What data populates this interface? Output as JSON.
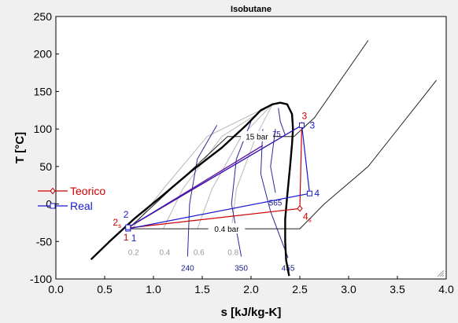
{
  "chart_data": {
    "type": "line",
    "title": "Isobutane",
    "xlabel": "s [kJ/kg-K]",
    "ylabel": "T [°C]",
    "xlim": [
      0.0,
      4.0
    ],
    "ylim": [
      -100,
      250
    ],
    "xticks": [
      "0.0",
      "0.5",
      "1.0",
      "1.5",
      "2.0",
      "2.5",
      "3.0",
      "3.5",
      "4.0"
    ],
    "yticks": [
      "-100",
      "-50",
      "0",
      "50",
      "100",
      "150",
      "200",
      "250"
    ],
    "grid": false,
    "legend_position": "left",
    "saturation_dome": [
      [
        0.36,
        -74
      ],
      [
        0.55,
        -50
      ],
      [
        0.8,
        -20
      ],
      [
        1.1,
        12
      ],
      [
        1.4,
        45
      ],
      [
        1.7,
        75
      ],
      [
        1.95,
        105
      ],
      [
        2.1,
        125
      ],
      [
        2.22,
        133
      ],
      [
        2.3,
        135
      ],
      [
        2.37,
        133
      ],
      [
        2.42,
        120
      ],
      [
        2.43,
        100
      ],
      [
        2.42,
        80
      ],
      [
        2.4,
        50
      ],
      [
        2.37,
        10
      ],
      [
        2.35,
        -20
      ],
      [
        2.35,
        -50
      ],
      [
        2.36,
        -75
      ],
      [
        2.39,
        -96
      ]
    ],
    "isobars": [
      {
        "label": "15 bar",
        "points": [
          [
            0.75,
            -32
          ],
          [
            1.76,
            90
          ],
          [
            2.44,
            90
          ],
          [
            2.65,
            115
          ],
          [
            3.2,
            218
          ]
        ]
      },
      {
        "label": "0.4 bar",
        "points": [
          [
            0.75,
            -33
          ],
          [
            2.5,
            -33
          ],
          [
            2.75,
            0
          ],
          [
            3.2,
            50
          ],
          [
            3.7,
            132
          ],
          [
            3.9,
            165
          ]
        ]
      }
    ],
    "quality_lines": [
      {
        "label": "0.2",
        "points": [
          [
            0.78,
            -33
          ],
          [
            1.1,
            20
          ],
          [
            1.55,
            90
          ],
          [
            2.22,
            133
          ]
        ]
      },
      {
        "label": "0.4",
        "points": [
          [
            1.1,
            -33
          ],
          [
            1.3,
            20
          ],
          [
            1.7,
            90
          ],
          [
            2.22,
            133
          ]
        ]
      },
      {
        "label": "0.6",
        "points": [
          [
            1.45,
            -33
          ],
          [
            1.6,
            20
          ],
          [
            1.9,
            90
          ],
          [
            2.22,
            133
          ]
        ]
      },
      {
        "label": "0.8",
        "points": [
          [
            1.8,
            -33
          ],
          [
            1.85,
            20
          ],
          [
            2.05,
            90
          ],
          [
            2.22,
            133
          ]
        ]
      }
    ],
    "isochores": [
      {
        "label": "240",
        "points": [
          [
            1.35,
            -70
          ],
          [
            1.37,
            0
          ],
          [
            1.45,
            60
          ],
          [
            1.65,
            105
          ]
        ]
      },
      {
        "label": "350",
        "points": [
          [
            1.9,
            -70
          ],
          [
            1.8,
            0
          ],
          [
            1.85,
            60
          ],
          [
            2.0,
            110
          ]
        ]
      },
      {
        "label": "455",
        "points": [
          [
            2.38,
            -72
          ],
          [
            2.2,
            -10
          ],
          [
            2.1,
            40
          ],
          [
            2.12,
            100
          ]
        ]
      },
      {
        "label": "565",
        "points": [
          [
            2.25,
            15
          ],
          [
            2.2,
            50
          ],
          [
            2.25,
            100
          ]
        ]
      },
      {
        "label": "675",
        "points": [
          [
            2.35,
            92
          ],
          [
            2.3,
            110
          ],
          [
            2.28,
            128
          ]
        ]
      }
    ],
    "series": [
      {
        "name": "Teorico",
        "color": "#cc0000",
        "marker": "diamond",
        "points": [
          [
            0.74,
            -32
          ],
          [
            0.745,
            -31
          ],
          [
            2.52,
            105
          ],
          [
            2.5,
            -6
          ],
          [
            0.74,
            -32
          ]
        ],
        "labels": [
          "1",
          "2s",
          "3",
          "4s"
        ]
      },
      {
        "name": "Real",
        "color": "#1a1acc",
        "marker": "square",
        "points": [
          [
            0.74,
            -33
          ],
          [
            0.74,
            -31
          ],
          [
            2.52,
            105
          ],
          [
            2.6,
            14
          ],
          [
            0.74,
            -33
          ]
        ],
        "labels": [
          "1",
          "2",
          "3",
          "4"
        ]
      }
    ],
    "process_line": {
      "color": "#6a1a9a",
      "points": [
        [
          0.76,
          -30
        ],
        [
          2.12,
          78
        ]
      ]
    }
  }
}
